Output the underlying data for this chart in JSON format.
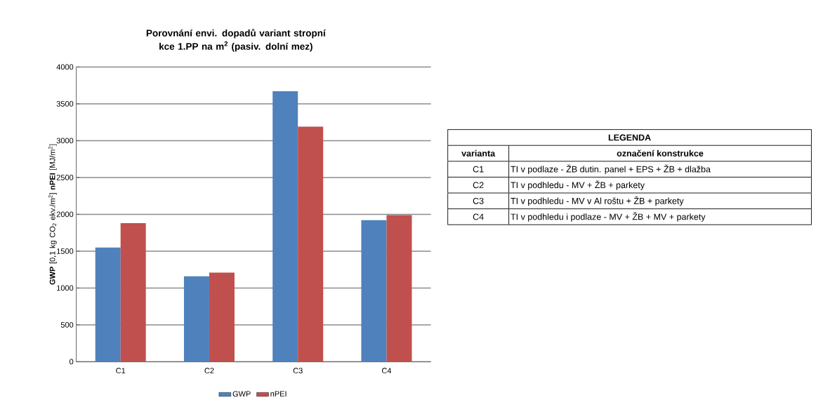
{
  "chart_data": {
    "type": "bar",
    "title": "Porovnání envi. dopadů variant stropní kce 1.PP na m$^{2}$ (pasiv. dolní mez)",
    "ylabel": "**GWP** [0,1 kg CO$_{2}$ ekv./m$^{2}$] **nPEI** [MJ/m$^{2}$]",
    "categories": [
      "C1",
      "C2",
      "C3",
      "C4"
    ],
    "series": [
      {
        "name": "GWP",
        "color": "#4f81bd",
        "values": [
          1550,
          1160,
          3670,
          1920
        ]
      },
      {
        "name": "nPEI",
        "color": "#c0504d",
        "values": [
          1880,
          1210,
          3190,
          1990
        ]
      }
    ],
    "ylim": [
      0,
      4000
    ],
    "yticks": [
      0,
      500,
      1000,
      1500,
      2000,
      2500,
      3000,
      3500,
      4000
    ],
    "grid": "y",
    "legend": "bottom",
    "annotations": [
      "LEGENDA",
      "varianta",
      "označení konstrukce",
      "C1",
      "TI v podlaze - ŽB dutin. panel + EPS + ŽB + dlažba",
      "C2",
      "TI v podhledu - MV + ŽB + parkety",
      "C3",
      "TI v podhledu - MV v Al roštu + ŽB + parkety",
      "C4",
      "TI v podhledu i podlaze - MV + ŽB + MV + parkety"
    ]
  }
}
